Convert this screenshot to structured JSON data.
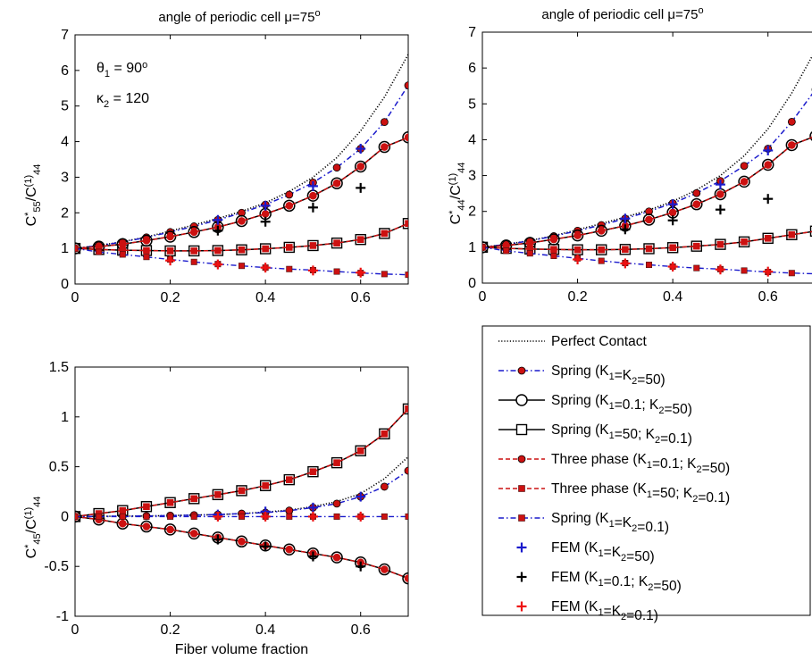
{
  "chart_data": [
    {
      "type": "line",
      "title": "angle of periodic cell μ=75°",
      "ylabel": "C*55/C(1)44",
      "xlabel": "",
      "xlim": [
        0,
        0.7
      ],
      "ylim": [
        0,
        7
      ],
      "xticks": [
        "0",
        "0.2",
        "0.4",
        "0.6"
      ],
      "yticks": [
        "0",
        "1",
        "2",
        "3",
        "4",
        "5",
        "6",
        "7"
      ],
      "annotations": [
        "θ1 = 90°",
        "κ2 = 120"
      ],
      "x": [
        0,
        0.05,
        0.1,
        0.15,
        0.2,
        0.25,
        0.3,
        0.35,
        0.4,
        0.45,
        0.5,
        0.55,
        0.6,
        0.65,
        0.7
      ],
      "series": [
        {
          "name": "Perfect Contact",
          "values": [
            1.0,
            1.08,
            1.19,
            1.32,
            1.49,
            1.66,
            1.84,
            2.04,
            2.28,
            2.6,
            3.0,
            3.55,
            4.3,
            5.25,
            6.45
          ]
        },
        {
          "name": "Spring (K1=K2=50)",
          "values": [
            1.0,
            1.08,
            1.18,
            1.31,
            1.46,
            1.62,
            1.8,
            2.0,
            2.23,
            2.51,
            2.85,
            3.27,
            3.8,
            4.55,
            5.58
          ]
        },
        {
          "name": "Spring (K1=0.1; K2=50)",
          "values": [
            1.0,
            1.05,
            1.12,
            1.22,
            1.33,
            1.46,
            1.6,
            1.77,
            1.97,
            2.2,
            2.48,
            2.83,
            3.3,
            3.85,
            4.12
          ]
        },
        {
          "name": "Spring (K1=50; K2=0.1)",
          "values": [
            1.0,
            0.97,
            0.95,
            0.94,
            0.93,
            0.93,
            0.94,
            0.96,
            0.99,
            1.03,
            1.08,
            1.15,
            1.25,
            1.42,
            1.7
          ]
        },
        {
          "name": "Three phase (K1=0.1; K2=50)",
          "values": [
            1.0,
            1.05,
            1.12,
            1.22,
            1.33,
            1.46,
            1.6,
            1.77,
            1.97,
            2.2,
            2.48,
            2.83,
            3.3,
            3.85,
            4.12
          ]
        },
        {
          "name": "Three phase (K1=50; K2=0.1)",
          "values": [
            1.0,
            0.97,
            0.95,
            0.94,
            0.93,
            0.93,
            0.94,
            0.96,
            0.99,
            1.03,
            1.08,
            1.15,
            1.25,
            1.42,
            1.7
          ]
        },
        {
          "name": "Spring (K1=K2=0.1)",
          "values": [
            1.0,
            0.9,
            0.83,
            0.76,
            0.69,
            0.62,
            0.56,
            0.51,
            0.46,
            0.42,
            0.39,
            0.35,
            0.31,
            0.28,
            0.26
          ]
        }
      ],
      "fem": [
        {
          "name": "FEM (K1=K2=50)",
          "x": [
            0.3,
            0.4,
            0.5,
            0.6
          ],
          "y": [
            1.8,
            2.2,
            2.75,
            3.8
          ]
        },
        {
          "name": "FEM (K1=0.1; K2=50)",
          "x": [
            0.3,
            0.4,
            0.5,
            0.6
          ],
          "y": [
            1.5,
            1.75,
            2.15,
            2.7
          ]
        },
        {
          "name": "FEM (K1=K2=0.1)",
          "x": [
            0.2,
            0.3,
            0.4,
            0.5,
            0.6
          ],
          "y": [
            0.66,
            0.55,
            0.46,
            0.38,
            0.32
          ]
        }
      ]
    },
    {
      "type": "line",
      "title": "angle of periodic cell μ=75°",
      "ylabel": "C*44/C(1)44",
      "xlabel": "",
      "xlim": [
        0,
        0.7
      ],
      "ylim": [
        0,
        7
      ],
      "xticks": [
        "0",
        "0.2",
        "0.4",
        "0.6"
      ],
      "yticks": [
        "0",
        "1",
        "2",
        "3",
        "4",
        "5",
        "6",
        "7"
      ],
      "x": [
        0,
        0.05,
        0.1,
        0.15,
        0.2,
        0.25,
        0.3,
        0.35,
        0.4,
        0.45,
        0.5,
        0.55,
        0.6,
        0.65,
        0.7
      ],
      "series": [
        {
          "name": "Perfect Contact",
          "values": [
            1.0,
            1.08,
            1.19,
            1.32,
            1.49,
            1.66,
            1.84,
            2.04,
            2.28,
            2.6,
            3.0,
            3.55,
            4.3,
            5.3,
            6.5
          ]
        },
        {
          "name": "Spring (K1=K2=50)",
          "values": [
            1.0,
            1.08,
            1.18,
            1.31,
            1.46,
            1.62,
            1.8,
            2.0,
            2.23,
            2.51,
            2.85,
            3.27,
            3.75,
            4.5,
            5.4
          ]
        },
        {
          "name": "Spring (K1=0.1; K2=50)",
          "values": [
            1.0,
            1.05,
            1.12,
            1.22,
            1.33,
            1.46,
            1.6,
            1.77,
            1.97,
            2.2,
            2.48,
            2.83,
            3.3,
            3.85,
            4.1
          ]
        },
        {
          "name": "Spring (K1=50; K2=0.1)",
          "values": [
            1.0,
            0.97,
            0.95,
            0.94,
            0.93,
            0.93,
            0.94,
            0.96,
            0.99,
            1.03,
            1.08,
            1.15,
            1.25,
            1.35,
            1.45
          ]
        },
        {
          "name": "Three phase (K1=0.1; K2=50)",
          "values": [
            1.0,
            1.05,
            1.12,
            1.22,
            1.33,
            1.46,
            1.6,
            1.77,
            1.97,
            2.2,
            2.48,
            2.83,
            3.3,
            3.85,
            4.1
          ]
        },
        {
          "name": "Three phase (K1=50; K2=0.1)",
          "values": [
            1.0,
            0.97,
            0.95,
            0.94,
            0.93,
            0.93,
            0.94,
            0.96,
            0.99,
            1.03,
            1.08,
            1.15,
            1.25,
            1.35,
            1.45
          ]
        },
        {
          "name": "Spring (K1=K2=0.1)",
          "values": [
            1.0,
            0.9,
            0.83,
            0.76,
            0.69,
            0.62,
            0.56,
            0.51,
            0.46,
            0.42,
            0.39,
            0.35,
            0.31,
            0.28,
            0.26
          ]
        }
      ],
      "fem": [
        {
          "name": "FEM (K1=K2=50)",
          "x": [
            0.3,
            0.4,
            0.5,
            0.6
          ],
          "y": [
            1.8,
            2.2,
            2.75,
            3.7
          ]
        },
        {
          "name": "FEM (K1=0.1; K2=50)",
          "x": [
            0.3,
            0.4,
            0.5,
            0.6
          ],
          "y": [
            1.5,
            1.75,
            2.05,
            2.35
          ]
        },
        {
          "name": "FEM (K1=K2=0.1)",
          "x": [
            0.2,
            0.3,
            0.4,
            0.5,
            0.6
          ],
          "y": [
            0.66,
            0.55,
            0.46,
            0.38,
            0.32
          ]
        }
      ]
    },
    {
      "type": "line",
      "title": "",
      "ylabel": "C*45/C(1)44",
      "xlabel": "Fiber volume fraction",
      "xlim": [
        0,
        0.7
      ],
      "ylim": [
        -1,
        1.5
      ],
      "xticks": [
        "0",
        "0.2",
        "0.4",
        "0.6"
      ],
      "yticks": [
        "-1",
        "-0.5",
        "0",
        "0.5",
        "1",
        "1.5"
      ],
      "x": [
        0,
        0.05,
        0.1,
        0.15,
        0.2,
        0.25,
        0.3,
        0.35,
        0.4,
        0.45,
        0.5,
        0.55,
        0.6,
        0.65,
        0.7
      ],
      "series": [
        {
          "name": "Perfect Contact",
          "values": [
            0,
            0.002,
            0.004,
            0.006,
            0.01,
            0.015,
            0.02,
            0.03,
            0.045,
            0.065,
            0.1,
            0.15,
            0.23,
            0.38,
            0.6
          ]
        },
        {
          "name": "Spring (K1=K2=50)",
          "values": [
            0,
            0.002,
            0.004,
            0.006,
            0.01,
            0.015,
            0.02,
            0.03,
            0.04,
            0.06,
            0.09,
            0.13,
            0.2,
            0.3,
            0.46
          ]
        },
        {
          "name": "Spring (K1=0.1; K2=50)",
          "values": [
            0,
            -0.03,
            -0.07,
            -0.1,
            -0.13,
            -0.17,
            -0.21,
            -0.25,
            -0.29,
            -0.33,
            -0.37,
            -0.41,
            -0.46,
            -0.53,
            -0.62
          ]
        },
        {
          "name": "Spring (K1=50; K2=0.1)",
          "values": [
            0,
            0.03,
            0.06,
            0.1,
            0.14,
            0.18,
            0.22,
            0.26,
            0.31,
            0.37,
            0.45,
            0.54,
            0.66,
            0.83,
            1.08
          ]
        },
        {
          "name": "Three phase (K1=0.1; K2=50)",
          "values": [
            0,
            -0.03,
            -0.07,
            -0.1,
            -0.13,
            -0.17,
            -0.21,
            -0.25,
            -0.29,
            -0.33,
            -0.37,
            -0.41,
            -0.46,
            -0.53,
            -0.62
          ]
        },
        {
          "name": "Three phase (K1=50; K2=0.1)",
          "values": [
            0,
            0.03,
            0.06,
            0.1,
            0.14,
            0.18,
            0.22,
            0.26,
            0.31,
            0.37,
            0.45,
            0.54,
            0.66,
            0.83,
            1.08
          ]
        },
        {
          "name": "Spring (K1=K2=0.1)",
          "values": [
            0,
            0,
            0,
            0,
            0,
            0,
            0,
            0,
            0,
            0,
            0,
            0,
            0,
            0,
            0
          ]
        }
      ],
      "fem": [
        {
          "name": "FEM (K1=K2=50)",
          "x": [
            0.3,
            0.4,
            0.5,
            0.6
          ],
          "y": [
            0.02,
            0.05,
            0.09,
            0.2
          ]
        },
        {
          "name": "FEM (K1=0.1; K2=50)",
          "x": [
            0.3,
            0.4,
            0.5,
            0.6
          ],
          "y": [
            -0.23,
            -0.3,
            -0.4,
            -0.5
          ]
        },
        {
          "name": "FEM (K1=K2=0.1)",
          "x": [
            0.3,
            0.4,
            0.5,
            0.6
          ],
          "y": [
            0,
            0,
            0,
            0
          ]
        }
      ]
    }
  ],
  "legend": {
    "items": [
      {
        "label": "Perfect Contact",
        "style": "dotted",
        "color": "#000000",
        "marker": "none"
      },
      {
        "label": "Spring (K1=K2=50)",
        "style": "dashdot",
        "color": "#1a1acc",
        "marker": "circle-red-small"
      },
      {
        "label": "Spring (K1=0.1; K2=50)",
        "style": "solid",
        "color": "#000000",
        "marker": "circle-open-large"
      },
      {
        "label": "Spring (K1=50; K2=0.1)",
        "style": "solid",
        "color": "#000000",
        "marker": "square-open"
      },
      {
        "label": "Three phase (K1=0.1; K2=50)",
        "style": "dashed",
        "color": "#cc1111",
        "marker": "circle-red-small"
      },
      {
        "label": "Three phase (K1=50; K2=0.1)",
        "style": "dashed",
        "color": "#cc1111",
        "marker": "square-red-small"
      },
      {
        "label": "Spring (K1=K2=0.1)",
        "style": "dashdot",
        "color": "#1a1acc",
        "marker": "square-red-small"
      },
      {
        "label": "FEM (K1=K2=50)",
        "style": "none",
        "color": "#1a1acc",
        "marker": "plus"
      },
      {
        "label": "FEM (K1=0.1; K2=50)",
        "style": "none",
        "color": "#000000",
        "marker": "plus"
      },
      {
        "label": "FEM (K1=K2=0.1)",
        "style": "none",
        "color": "#ee1111",
        "marker": "plus"
      }
    ]
  },
  "colors": {
    "blue": "#1a1acc",
    "red": "#cc1111",
    "black": "#000000",
    "fem_red": "#ee1111"
  }
}
